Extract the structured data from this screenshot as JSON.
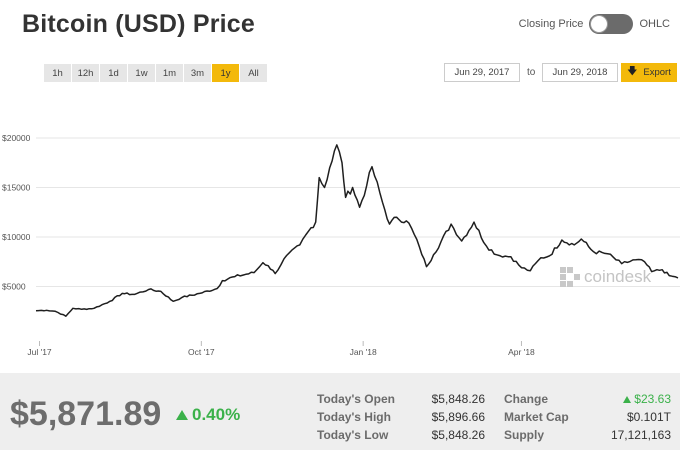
{
  "title": "Bitcoin (USD) Price",
  "toggle": {
    "left_label": "Closing Price",
    "right_label": "OHLC",
    "state": "Closing Price"
  },
  "ranges": [
    {
      "label": "1h"
    },
    {
      "label": "12h"
    },
    {
      "label": "1d"
    },
    {
      "label": "1w"
    },
    {
      "label": "1m"
    },
    {
      "label": "3m"
    },
    {
      "label": "1y",
      "active": true
    },
    {
      "label": "All"
    }
  ],
  "date_range": {
    "from": "Jun 29, 2017",
    "to_label": "to",
    "to": "Jun 29, 2018"
  },
  "export": {
    "label": "Export",
    "icon": "download-arrow-icon"
  },
  "watermark": "coindesk",
  "colors": {
    "accent": "#f3b90b",
    "positive": "#3bb14a",
    "line": "#1f1f1f"
  },
  "summary": {
    "price": "$5,871.89",
    "change_pct": "0.40%",
    "stats": [
      {
        "label": "Today's Open",
        "value": "$5,848.26"
      },
      {
        "label": "Today's High",
        "value": "$5,896.66"
      },
      {
        "label": "Today's Low",
        "value": "$5,848.26"
      },
      {
        "label": "Change",
        "value": "$23.63",
        "direction": "up"
      },
      {
        "label": "Market Cap",
        "value": "$0.101T"
      },
      {
        "label": "Supply",
        "value": "17,121,163"
      }
    ]
  },
  "chart_data": {
    "type": "line",
    "x_ticks": [
      "Jul '17",
      "Oct '17",
      "Jan '18",
      "Apr '18"
    ],
    "y_ticks": [
      "$5000",
      "$10000",
      "$15000",
      "$20000"
    ],
    "ylim": [
      0,
      22000
    ],
    "grid": true,
    "series": [
      {
        "x": [
          "2017-06-29",
          "2017-07-05",
          "2017-07-10",
          "2017-07-16",
          "2017-07-20",
          "2017-07-25",
          "2017-08-01",
          "2017-08-10",
          "2017-08-17",
          "2017-08-24",
          "2017-09-01",
          "2017-09-08",
          "2017-09-15",
          "2017-09-20",
          "2017-09-30",
          "2017-10-10",
          "2017-10-13",
          "2017-10-20",
          "2017-10-31",
          "2017-11-05",
          "2017-11-08",
          "2017-11-12",
          "2017-11-17",
          "2017-11-26",
          "2017-12-01",
          "2017-12-05",
          "2017-12-07",
          "2017-12-10",
          "2017-12-13",
          "2017-12-17",
          "2017-12-20",
          "2017-12-22",
          "2017-12-26",
          "2017-12-30",
          "2018-01-03",
          "2018-01-06",
          "2018-01-12",
          "2018-01-16",
          "2018-01-20",
          "2018-01-27",
          "2018-02-02",
          "2018-02-06",
          "2018-02-10",
          "2018-02-20",
          "2018-02-26",
          "2018-03-05",
          "2018-03-12",
          "2018-03-18",
          "2018-03-26",
          "2018-04-01",
          "2018-04-06",
          "2018-04-12",
          "2018-04-17",
          "2018-04-24",
          "2018-05-01",
          "2018-05-05",
          "2018-05-12",
          "2018-05-20",
          "2018-05-28",
          "2018-06-05",
          "2018-06-10",
          "2018-06-14",
          "2018-06-20",
          "2018-06-24",
          "2018-06-29"
        ],
        "y": [
          2550,
          2600,
          2500,
          2000,
          2800,
          2700,
          2800,
          3500,
          4300,
          4200,
          4700,
          4500,
          3500,
          3900,
          4300,
          4800,
          5600,
          6000,
          6400,
          7400,
          7100,
          6300,
          7800,
          9200,
          10600,
          11500,
          16000,
          15000,
          17000,
          19300,
          17500,
          14000,
          15000,
          13000,
          15200,
          17100,
          13500,
          11300,
          12000,
          11400,
          9000,
          7000,
          8200,
          11300,
          9600,
          11500,
          9100,
          8200,
          8000,
          6900,
          6600,
          7900,
          8100,
          9700,
          9200,
          9800,
          8500,
          8300,
          7300,
          7700,
          7500,
          6500,
          6700,
          6100,
          5870
        ]
      }
    ]
  }
}
